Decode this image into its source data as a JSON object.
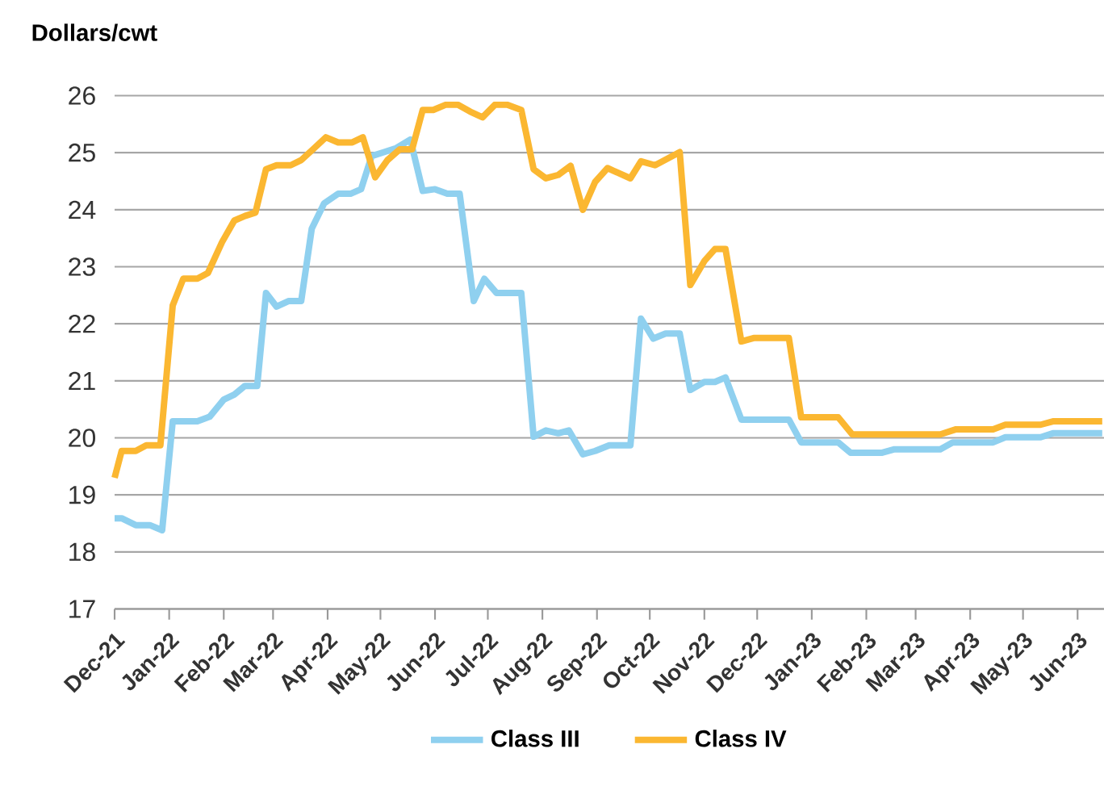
{
  "chart_data": {
    "type": "line",
    "ylabel": "Dollars/cwt",
    "xlim": [
      "2021-12-01",
      "2023-06-16"
    ],
    "ylim": [
      17,
      26
    ],
    "xticks": [
      {
        "value": "2021-12-01",
        "label": "Dec-21"
      },
      {
        "value": "2022-01-01",
        "label": "Jan-22"
      },
      {
        "value": "2022-02-01",
        "label": "Feb-22"
      },
      {
        "value": "2022-03-01",
        "label": "Mar-22"
      },
      {
        "value": "2022-04-01",
        "label": "Apr-22"
      },
      {
        "value": "2022-05-01",
        "label": "May-22"
      },
      {
        "value": "2022-06-01",
        "label": "Jun-22"
      },
      {
        "value": "2022-07-01",
        "label": "Jul-22"
      },
      {
        "value": "2022-08-01",
        "label": "Aug-22"
      },
      {
        "value": "2022-09-01",
        "label": "Sep-22"
      },
      {
        "value": "2022-10-01",
        "label": "Oct-22"
      },
      {
        "value": "2022-11-01",
        "label": "Nov-22"
      },
      {
        "value": "2022-12-01",
        "label": "Dec-22"
      },
      {
        "value": "2023-01-01",
        "label": "Jan-23"
      },
      {
        "value": "2023-02-01",
        "label": "Feb-23"
      },
      {
        "value": "2023-03-01",
        "label": "Mar-23"
      },
      {
        "value": "2023-04-01",
        "label": "Apr-23"
      },
      {
        "value": "2023-05-01",
        "label": "May-23"
      },
      {
        "value": "2023-06-01",
        "label": "Jun-23"
      }
    ],
    "yticks": [
      17,
      18,
      19,
      20,
      21,
      22,
      23,
      24,
      25,
      26
    ],
    "grid": "y",
    "legend": "bottom",
    "series": [
      {
        "name": "Class III",
        "color": "#8fd0ef",
        "x": [
          "2021-12-01",
          "2021-12-05",
          "2021-12-13",
          "2021-12-21",
          "2021-12-28",
          "2022-01-03",
          "2022-01-17",
          "2022-01-24",
          "2022-02-01",
          "2022-02-07",
          "2022-02-13",
          "2022-02-20",
          "2022-02-25",
          "2022-03-03",
          "2022-03-10",
          "2022-03-17",
          "2022-03-23",
          "2022-03-30",
          "2022-04-07",
          "2022-04-14",
          "2022-04-20",
          "2022-04-26",
          "2022-05-03",
          "2022-05-10",
          "2022-05-18",
          "2022-05-25",
          "2022-06-01",
          "2022-06-08",
          "2022-06-15",
          "2022-06-23",
          "2022-06-29",
          "2022-07-06",
          "2022-07-20",
          "2022-07-27",
          "2022-08-03",
          "2022-08-10",
          "2022-08-16",
          "2022-08-24",
          "2022-08-31",
          "2022-09-08",
          "2022-09-20",
          "2022-09-26",
          "2022-10-03",
          "2022-10-10",
          "2022-10-18",
          "2022-10-24",
          "2022-11-01",
          "2022-11-07",
          "2022-11-13",
          "2022-11-22",
          "2022-12-19",
          "2022-12-26",
          "2023-01-16",
          "2023-01-23",
          "2023-02-10",
          "2023-02-17",
          "2023-03-15",
          "2023-03-22",
          "2023-04-14",
          "2023-04-21",
          "2023-05-11",
          "2023-05-18",
          "2023-06-15"
        ],
        "values": [
          18.59,
          18.59,
          18.47,
          18.47,
          18.38,
          20.29,
          20.29,
          20.37,
          20.67,
          20.76,
          20.91,
          20.91,
          22.54,
          22.3,
          22.4,
          22.4,
          23.67,
          24.11,
          24.28,
          24.28,
          24.36,
          24.94,
          25.01,
          25.08,
          25.23,
          24.33,
          24.36,
          24.28,
          24.28,
          22.4,
          22.79,
          22.54,
          22.54,
          20.02,
          20.13,
          20.08,
          20.13,
          19.71,
          19.77,
          19.87,
          19.87,
          22.09,
          21.74,
          21.83,
          21.83,
          20.84,
          20.98,
          20.98,
          21.06,
          20.32,
          20.32,
          19.92,
          19.92,
          19.74,
          19.74,
          19.8,
          19.8,
          19.92,
          19.92,
          20.01,
          20.01,
          20.08,
          20.08
        ]
      },
      {
        "name": "Class IV",
        "color": "#fbb731",
        "x": [
          "2021-12-01",
          "2021-12-05",
          "2021-12-13",
          "2021-12-19",
          "2021-12-27",
          "2022-01-03",
          "2022-01-09",
          "2022-01-17",
          "2022-01-23",
          "2022-01-31",
          "2022-02-07",
          "2022-02-13",
          "2022-02-19",
          "2022-02-25",
          "2022-03-03",
          "2022-03-11",
          "2022-03-17",
          "2022-03-23",
          "2022-03-31",
          "2022-04-07",
          "2022-04-15",
          "2022-04-21",
          "2022-04-28",
          "2022-05-05",
          "2022-05-12",
          "2022-05-19",
          "2022-05-25",
          "2022-05-31",
          "2022-06-07",
          "2022-06-14",
          "2022-06-21",
          "2022-06-28",
          "2022-07-05",
          "2022-07-12",
          "2022-07-20",
          "2022-07-27",
          "2022-08-03",
          "2022-08-10",
          "2022-08-17",
          "2022-08-24",
          "2022-08-31",
          "2022-09-07",
          "2022-09-20",
          "2022-09-26",
          "2022-10-04",
          "2022-10-18",
          "2022-10-24",
          "2022-11-01",
          "2022-11-07",
          "2022-11-13",
          "2022-11-22",
          "2022-11-29",
          "2022-12-19",
          "2022-12-26",
          "2023-01-16",
          "2023-01-24",
          "2023-03-15",
          "2023-03-24",
          "2023-04-14",
          "2023-04-21",
          "2023-05-11",
          "2023-05-18",
          "2023-06-15"
        ],
        "values": [
          19.3,
          19.77,
          19.77,
          19.87,
          19.87,
          22.32,
          22.79,
          22.79,
          22.89,
          23.43,
          23.81,
          23.89,
          23.95,
          24.71,
          24.78,
          24.78,
          24.87,
          25.04,
          25.27,
          25.18,
          25.18,
          25.27,
          24.57,
          24.87,
          25.06,
          25.06,
          25.75,
          25.75,
          25.84,
          25.84,
          25.72,
          25.62,
          25.84,
          25.84,
          25.75,
          24.71,
          24.55,
          24.61,
          24.77,
          24.0,
          24.49,
          24.73,
          24.55,
          24.85,
          24.78,
          25.01,
          22.68,
          23.1,
          23.31,
          23.31,
          21.69,
          21.75,
          21.75,
          20.36,
          20.36,
          20.06,
          20.06,
          20.15,
          20.15,
          20.23,
          20.23,
          20.29,
          20.29
        ]
      }
    ]
  }
}
